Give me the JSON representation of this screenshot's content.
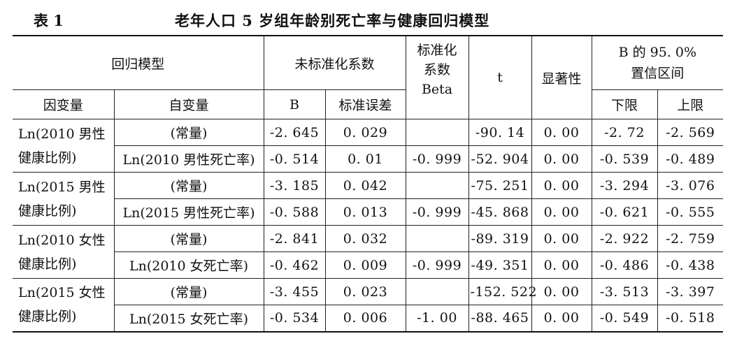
{
  "caption": {
    "label": "表 1",
    "title": "老年人口 5 岁组年龄别死亡率与健康回归模型"
  },
  "header": {
    "model": "回归模型",
    "unstd": "未标准化系数",
    "std_line1": "标准化",
    "std_line2": "系数",
    "std_line3": "Beta",
    "t": "t",
    "sig": "显著性",
    "ci_line1": "B 的 95. 0%",
    "ci_line2": "置信区间",
    "dep": "因变量",
    "indep": "自变量",
    "b": "B",
    "se": "标准误差",
    "lower": "下限",
    "upper": "上限"
  },
  "groups": [
    {
      "dep_line1": "Ln(2010 男性",
      "dep_line2": "健康比例)",
      "rows": [
        {
          "indep": "(常量)",
          "b": "-2. 645",
          "se": "0. 029",
          "beta": "",
          "t": "-90. 14",
          "sig": "0. 00",
          "lower": "-2. 72",
          "upper": "-2. 569"
        },
        {
          "indep": "Ln(2010 男性死亡率)",
          "b": "-0. 514",
          "se": "0. 01",
          "beta": "-0. 999",
          "t": "-52. 904",
          "sig": "0. 00",
          "lower": "-0. 539",
          "upper": "-0. 489"
        }
      ]
    },
    {
      "dep_line1": "Ln(2015 男性",
      "dep_line2": "健康比例)",
      "rows": [
        {
          "indep": "(常量)",
          "b": "-3. 185",
          "se": "0. 042",
          "beta": "",
          "t": "-75. 251",
          "sig": "0. 00",
          "lower": "-3. 294",
          "upper": "-3. 076"
        },
        {
          "indep": "Ln(2015 男性死亡率)",
          "b": "-0. 588",
          "se": "0. 013",
          "beta": "-0. 999",
          "t": "-45. 868",
          "sig": "0. 00",
          "lower": "-0. 621",
          "upper": "-0. 555"
        }
      ]
    },
    {
      "dep_line1": "Ln(2010 女性",
      "dep_line2": "健康比例)",
      "rows": [
        {
          "indep": "(常量)",
          "b": "-2. 841",
          "se": "0. 032",
          "beta": "",
          "t": "-89. 319",
          "sig": "0. 00",
          "lower": "-2. 922",
          "upper": "-2. 759"
        },
        {
          "indep": "Ln(2010 女死亡率)",
          "b": "-0. 462",
          "se": "0. 009",
          "beta": "-0. 999",
          "t": "-49. 351",
          "sig": "0. 00",
          "lower": "-0. 486",
          "upper": "-0. 438"
        }
      ]
    },
    {
      "dep_line1": "Ln(2015 女性",
      "dep_line2": "健康比例)",
      "rows": [
        {
          "indep": "(常量)",
          "b": "-3. 455",
          "se": "0. 023",
          "beta": "",
          "t": "-152. 522",
          "sig": "0. 00",
          "lower": "-3. 513",
          "upper": "-3. 397"
        },
        {
          "indep": "Ln(2015 女死亡率)",
          "b": "-0. 534",
          "se": "0. 006",
          "beta": "-1. 00",
          "t": "-88. 465",
          "sig": "0. 00",
          "lower": "-0. 549",
          "upper": "-0. 518"
        }
      ]
    }
  ]
}
